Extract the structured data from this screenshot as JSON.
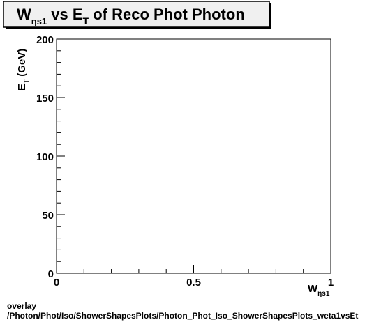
{
  "chart_data": {
    "type": "scatter",
    "title": {
      "main": "W",
      "main_sub": "ηs1",
      "mid": " vs E",
      "mid_sub": "T",
      "rest": " of Reco Phot Photon"
    },
    "xlabel": {
      "main": "W",
      "sub": "ηs1"
    },
    "ylabel": {
      "main": "E",
      "sub": "T",
      "rest": " (GeV)"
    },
    "xlim": [
      0,
      1
    ],
    "ylim": [
      0,
      200
    ],
    "x_ticks": [
      "0",
      "0.5",
      "1"
    ],
    "y_ticks": [
      "0",
      "50",
      "100",
      "150",
      "200"
    ],
    "series": [],
    "grid": false
  },
  "footer": {
    "line1": "overlay",
    "line2": "/Photon/Phot/Iso/ShowerShapesPlots/Photon_Phot_Iso_ShowerShapesPlots_weta1vsEt"
  }
}
